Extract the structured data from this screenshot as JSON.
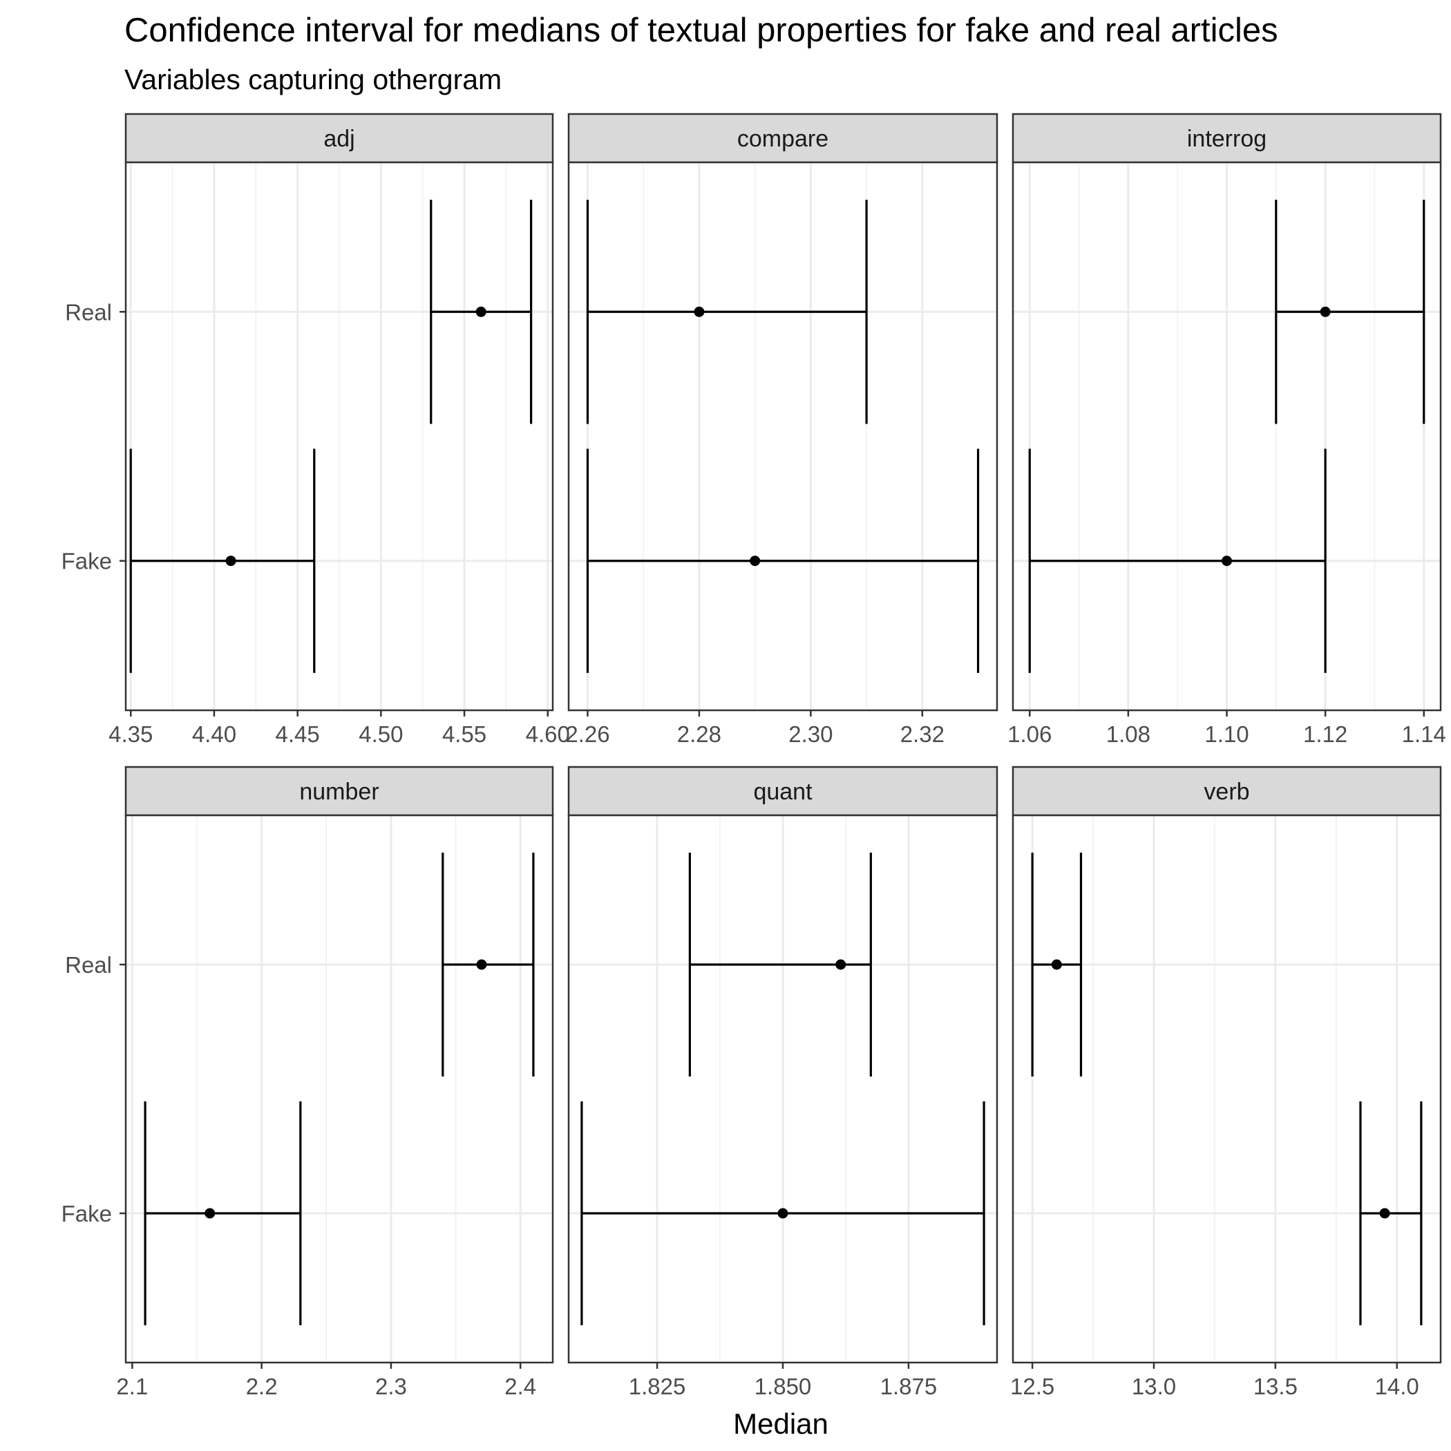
{
  "chart_data": {
    "type": "errorbar",
    "title": "Confidence interval for medians of textual properties for fake and real articles",
    "subtitle": "Variables capturing othergram",
    "xlabel": "Median",
    "ylabel": "",
    "categories": [
      "Real",
      "Fake"
    ],
    "grid": true,
    "facets": [
      {
        "name": "adj",
        "xlim": [
          4.347,
          4.603
        ],
        "ticks": [
          "4.35",
          "4.40",
          "4.45",
          "4.50",
          "4.55",
          "4.60"
        ],
        "tick_values": [
          4.35,
          4.4,
          4.45,
          4.5,
          4.55,
          4.6
        ],
        "points": [
          {
            "group": "Real",
            "median": 4.56,
            "lower": 4.53,
            "upper": 4.59
          },
          {
            "group": "Fake",
            "median": 4.41,
            "lower": 4.35,
            "upper": 4.46
          }
        ]
      },
      {
        "name": "compare",
        "xlim": [
          2.2566,
          2.3334
        ],
        "ticks": [
          "2.26",
          "2.28",
          "2.30",
          "2.32"
        ],
        "tick_values": [
          2.26,
          2.28,
          2.3,
          2.32
        ],
        "points": [
          {
            "group": "Real",
            "median": 2.28,
            "lower": 2.26,
            "upper": 2.31
          },
          {
            "group": "Fake",
            "median": 2.29,
            "lower": 2.26,
            "upper": 2.33
          }
        ]
      },
      {
        "name": "interrog",
        "xlim": [
          1.0566,
          1.1434
        ],
        "ticks": [
          "1.06",
          "1.08",
          "1.10",
          "1.12",
          "1.14"
        ],
        "tick_values": [
          1.06,
          1.08,
          1.1,
          1.12,
          1.14
        ],
        "points": [
          {
            "group": "Real",
            "median": 1.12,
            "lower": 1.11,
            "upper": 1.14
          },
          {
            "group": "Fake",
            "median": 1.1,
            "lower": 1.06,
            "upper": 1.12
          }
        ]
      },
      {
        "name": "number",
        "xlim": [
          2.095,
          2.425
        ],
        "ticks": [
          "2.1",
          "2.2",
          "2.3",
          "2.4"
        ],
        "tick_values": [
          2.1,
          2.2,
          2.3,
          2.4
        ],
        "points": [
          {
            "group": "Real",
            "median": 2.37,
            "lower": 2.34,
            "upper": 2.41
          },
          {
            "group": "Fake",
            "median": 2.16,
            "lower": 2.11,
            "upper": 2.23
          }
        ]
      },
      {
        "name": "quant",
        "xlim": [
          1.8074,
          1.8926
        ],
        "ticks": [
          "1.825",
          "1.850",
          "1.875"
        ],
        "tick_values": [
          1.825,
          1.85,
          1.875
        ],
        "points": [
          {
            "group": "Real",
            "median": 1.8615,
            "lower": 1.8315,
            "upper": 1.8675
          },
          {
            "group": "Fake",
            "median": 1.85,
            "lower": 1.81,
            "upper": 1.89
          }
        ]
      },
      {
        "name": "verb",
        "xlim": [
          12.42,
          14.18
        ],
        "ticks": [
          "12.5",
          "13.0",
          "13.5",
          "14.0"
        ],
        "tick_values": [
          12.5,
          13.0,
          13.5,
          14.0
        ],
        "points": [
          {
            "group": "Real",
            "median": 12.6,
            "lower": 12.5,
            "upper": 12.7
          },
          {
            "group": "Fake",
            "median": 13.95,
            "lower": 13.85,
            "upper": 14.1
          }
        ]
      }
    ]
  }
}
